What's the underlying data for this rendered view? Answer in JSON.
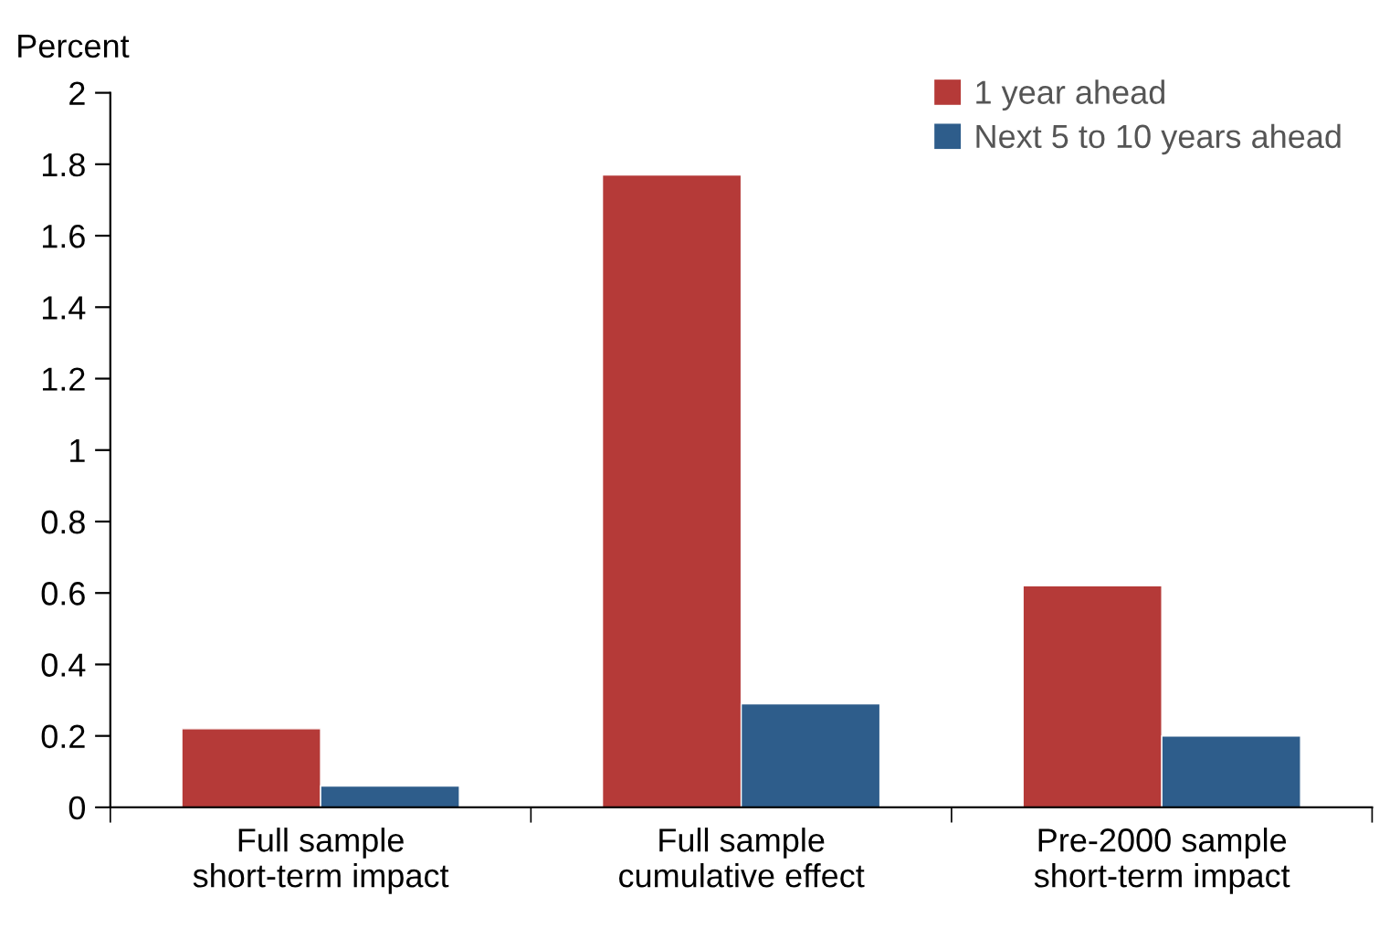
{
  "chart_data": {
    "type": "bar",
    "ylabel": "Percent",
    "categories": [
      "Full sample\nshort-term impact",
      "Full sample\ncumulative effect",
      "Pre-2000 sample\nshort-term impact"
    ],
    "series": [
      {
        "name": "1 year ahead",
        "color": "#b53a38",
        "values": [
          0.22,
          1.77,
          0.62
        ]
      },
      {
        "name": "Next 5 to 10 years ahead",
        "color": "#2e5d8b",
        "values": [
          0.06,
          0.29,
          0.2
        ]
      }
    ],
    "ylim": [
      0,
      2
    ],
    "yticks": [
      0,
      0.2,
      0.4,
      0.6,
      0.8,
      1,
      1.2,
      1.4,
      1.6,
      1.8,
      2
    ],
    "grid": false,
    "legend": "top right"
  }
}
